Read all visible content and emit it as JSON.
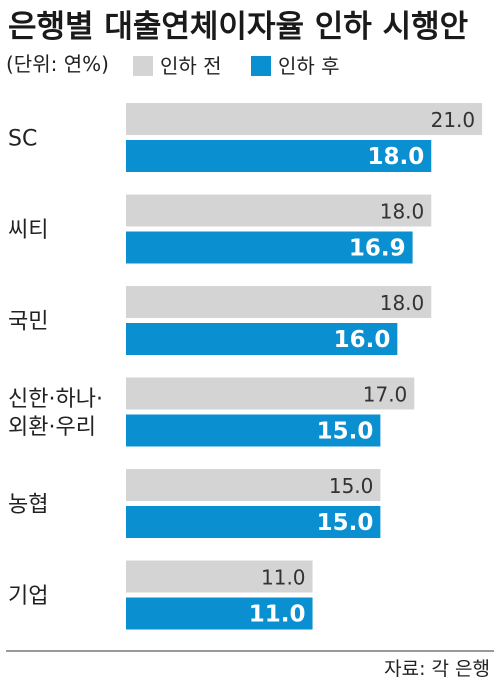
{
  "chart_data": {
    "type": "bar",
    "orientation": "horizontal",
    "title": "은행별 대출연체이자율 인하 시행안",
    "unit_label": "(단위: 연%)",
    "source": "자료: 각 은행",
    "categories": [
      [
        "SC"
      ],
      [
        "씨티"
      ],
      [
        "국민"
      ],
      [
        "신한·하나·",
        "외환·우리"
      ],
      [
        "농협"
      ],
      [
        "기업"
      ]
    ],
    "series": [
      {
        "name": "인하 전",
        "color": "#d4d4d4",
        "values": [
          21.0,
          18.0,
          18.0,
          17.0,
          15.0,
          11.0
        ]
      },
      {
        "name": "인하 후",
        "color": "#0a8fd1",
        "values": [
          18.0,
          16.9,
          16.0,
          15.0,
          15.0,
          11.0
        ]
      }
    ],
    "value_labels": [
      [
        "21.0",
        "18.0",
        "18.0",
        "17.0",
        "15.0",
        "11.0"
      ],
      [
        "18.0",
        "16.9",
        "16.0",
        "15.0",
        "15.0",
        "11.0"
      ]
    ],
    "xlim": [
      0,
      21.7
    ],
    "legend_placement": "top",
    "grid": false
  }
}
